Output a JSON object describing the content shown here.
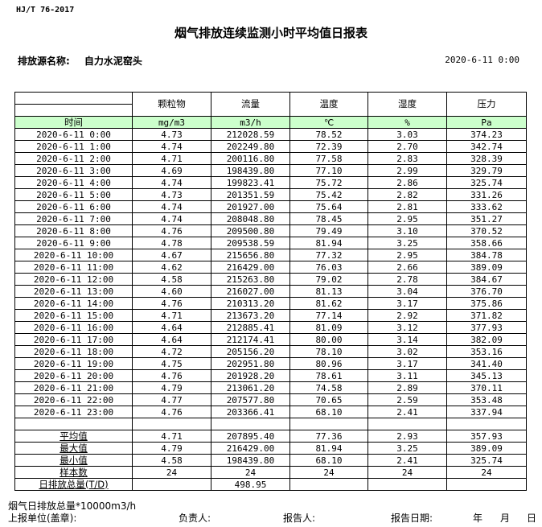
{
  "standard": "HJ/T  76-2017",
  "title": "烟气排放连续监测小时平均值日报表",
  "source": {
    "label": "排放源名称:",
    "value": "自力水泥窑头"
  },
  "report_date": "2020-6-11 0:00",
  "columns": [
    {
      "name": "颗粒物",
      "unit": "mg/m3"
    },
    {
      "name": "流量",
      "unit": "m3/h"
    },
    {
      "name": "温度",
      "unit": "℃"
    },
    {
      "name": "湿度",
      "unit": "%"
    },
    {
      "name": "压力",
      "unit": "Pa"
    }
  ],
  "time_header": "时间",
  "rows": [
    [
      "2020-6-11 0:00",
      "4.73",
      "212028.59",
      "78.52",
      "3.03",
      "374.23"
    ],
    [
      "2020-6-11 1:00",
      "4.74",
      "202249.80",
      "72.39",
      "2.70",
      "342.74"
    ],
    [
      "2020-6-11 2:00",
      "4.71",
      "200116.80",
      "77.58",
      "2.83",
      "328.39"
    ],
    [
      "2020-6-11 3:00",
      "4.69",
      "198439.80",
      "77.10",
      "2.99",
      "329.79"
    ],
    [
      "2020-6-11 4:00",
      "4.74",
      "199823.41",
      "75.72",
      "2.86",
      "325.74"
    ],
    [
      "2020-6-11 5:00",
      "4.73",
      "201351.59",
      "75.42",
      "2.82",
      "331.26"
    ],
    [
      "2020-6-11 6:00",
      "4.74",
      "201927.00",
      "75.64",
      "2.81",
      "333.62"
    ],
    [
      "2020-6-11 7:00",
      "4.74",
      "208048.80",
      "78.45",
      "2.95",
      "351.27"
    ],
    [
      "2020-6-11 8:00",
      "4.76",
      "209500.80",
      "79.49",
      "3.10",
      "370.52"
    ],
    [
      "2020-6-11 9:00",
      "4.78",
      "209538.59",
      "81.94",
      "3.25",
      "358.66"
    ],
    [
      "2020-6-11 10:00",
      "4.67",
      "215656.80",
      "77.32",
      "2.95",
      "384.78"
    ],
    [
      "2020-6-11 11:00",
      "4.62",
      "216429.00",
      "76.03",
      "2.66",
      "389.09"
    ],
    [
      "2020-6-11 12:00",
      "4.58",
      "215263.80",
      "79.02",
      "2.78",
      "384.67"
    ],
    [
      "2020-6-11 13:00",
      "4.60",
      "216027.00",
      "81.13",
      "3.04",
      "376.70"
    ],
    [
      "2020-6-11 14:00",
      "4.76",
      "210313.20",
      "81.62",
      "3.17",
      "375.86"
    ],
    [
      "2020-6-11 15:00",
      "4.71",
      "213673.20",
      "77.14",
      "2.92",
      "371.82"
    ],
    [
      "2020-6-11 16:00",
      "4.64",
      "212885.41",
      "81.09",
      "3.12",
      "377.93"
    ],
    [
      "2020-6-11 17:00",
      "4.64",
      "212174.41",
      "80.00",
      "3.14",
      "382.09"
    ],
    [
      "2020-6-11 18:00",
      "4.72",
      "205156.20",
      "78.10",
      "3.02",
      "353.16"
    ],
    [
      "2020-6-11 19:00",
      "4.75",
      "202951.80",
      "80.96",
      "3.17",
      "341.40"
    ],
    [
      "2020-6-11 20:00",
      "4.76",
      "201928.20",
      "78.61",
      "3.11",
      "345.13"
    ],
    [
      "2020-6-11 21:00",
      "4.79",
      "213061.20",
      "74.58",
      "2.89",
      "370.11"
    ],
    [
      "2020-6-11 22:00",
      "4.77",
      "207577.80",
      "70.65",
      "2.59",
      "353.48"
    ],
    [
      "2020-6-11 23:00",
      "4.76",
      "203366.41",
      "68.10",
      "2.41",
      "337.94"
    ]
  ],
  "summary": [
    [
      "平均值",
      "4.71",
      "207895.40",
      "77.36",
      "2.93",
      "357.93"
    ],
    [
      "最大值",
      "4.79",
      "216429.00",
      "81.94",
      "3.25",
      "389.09"
    ],
    [
      "最小值",
      "4.58",
      "198439.80",
      "68.10",
      "2.41",
      "325.74"
    ],
    [
      "样本数",
      "24",
      "24",
      "24",
      "24",
      "24"
    ],
    [
      "日排放总量(T/D)",
      "",
      "498.95",
      "",
      "",
      ""
    ]
  ],
  "footer": {
    "note": "烟气日排放总量*10000m3/h",
    "unit_label": "上报单位(盖章):",
    "responsible_label": "负责人:",
    "reporter_label": "报告人:",
    "date_label": "报告日期:",
    "year": "年",
    "month": "月",
    "day": "日"
  }
}
